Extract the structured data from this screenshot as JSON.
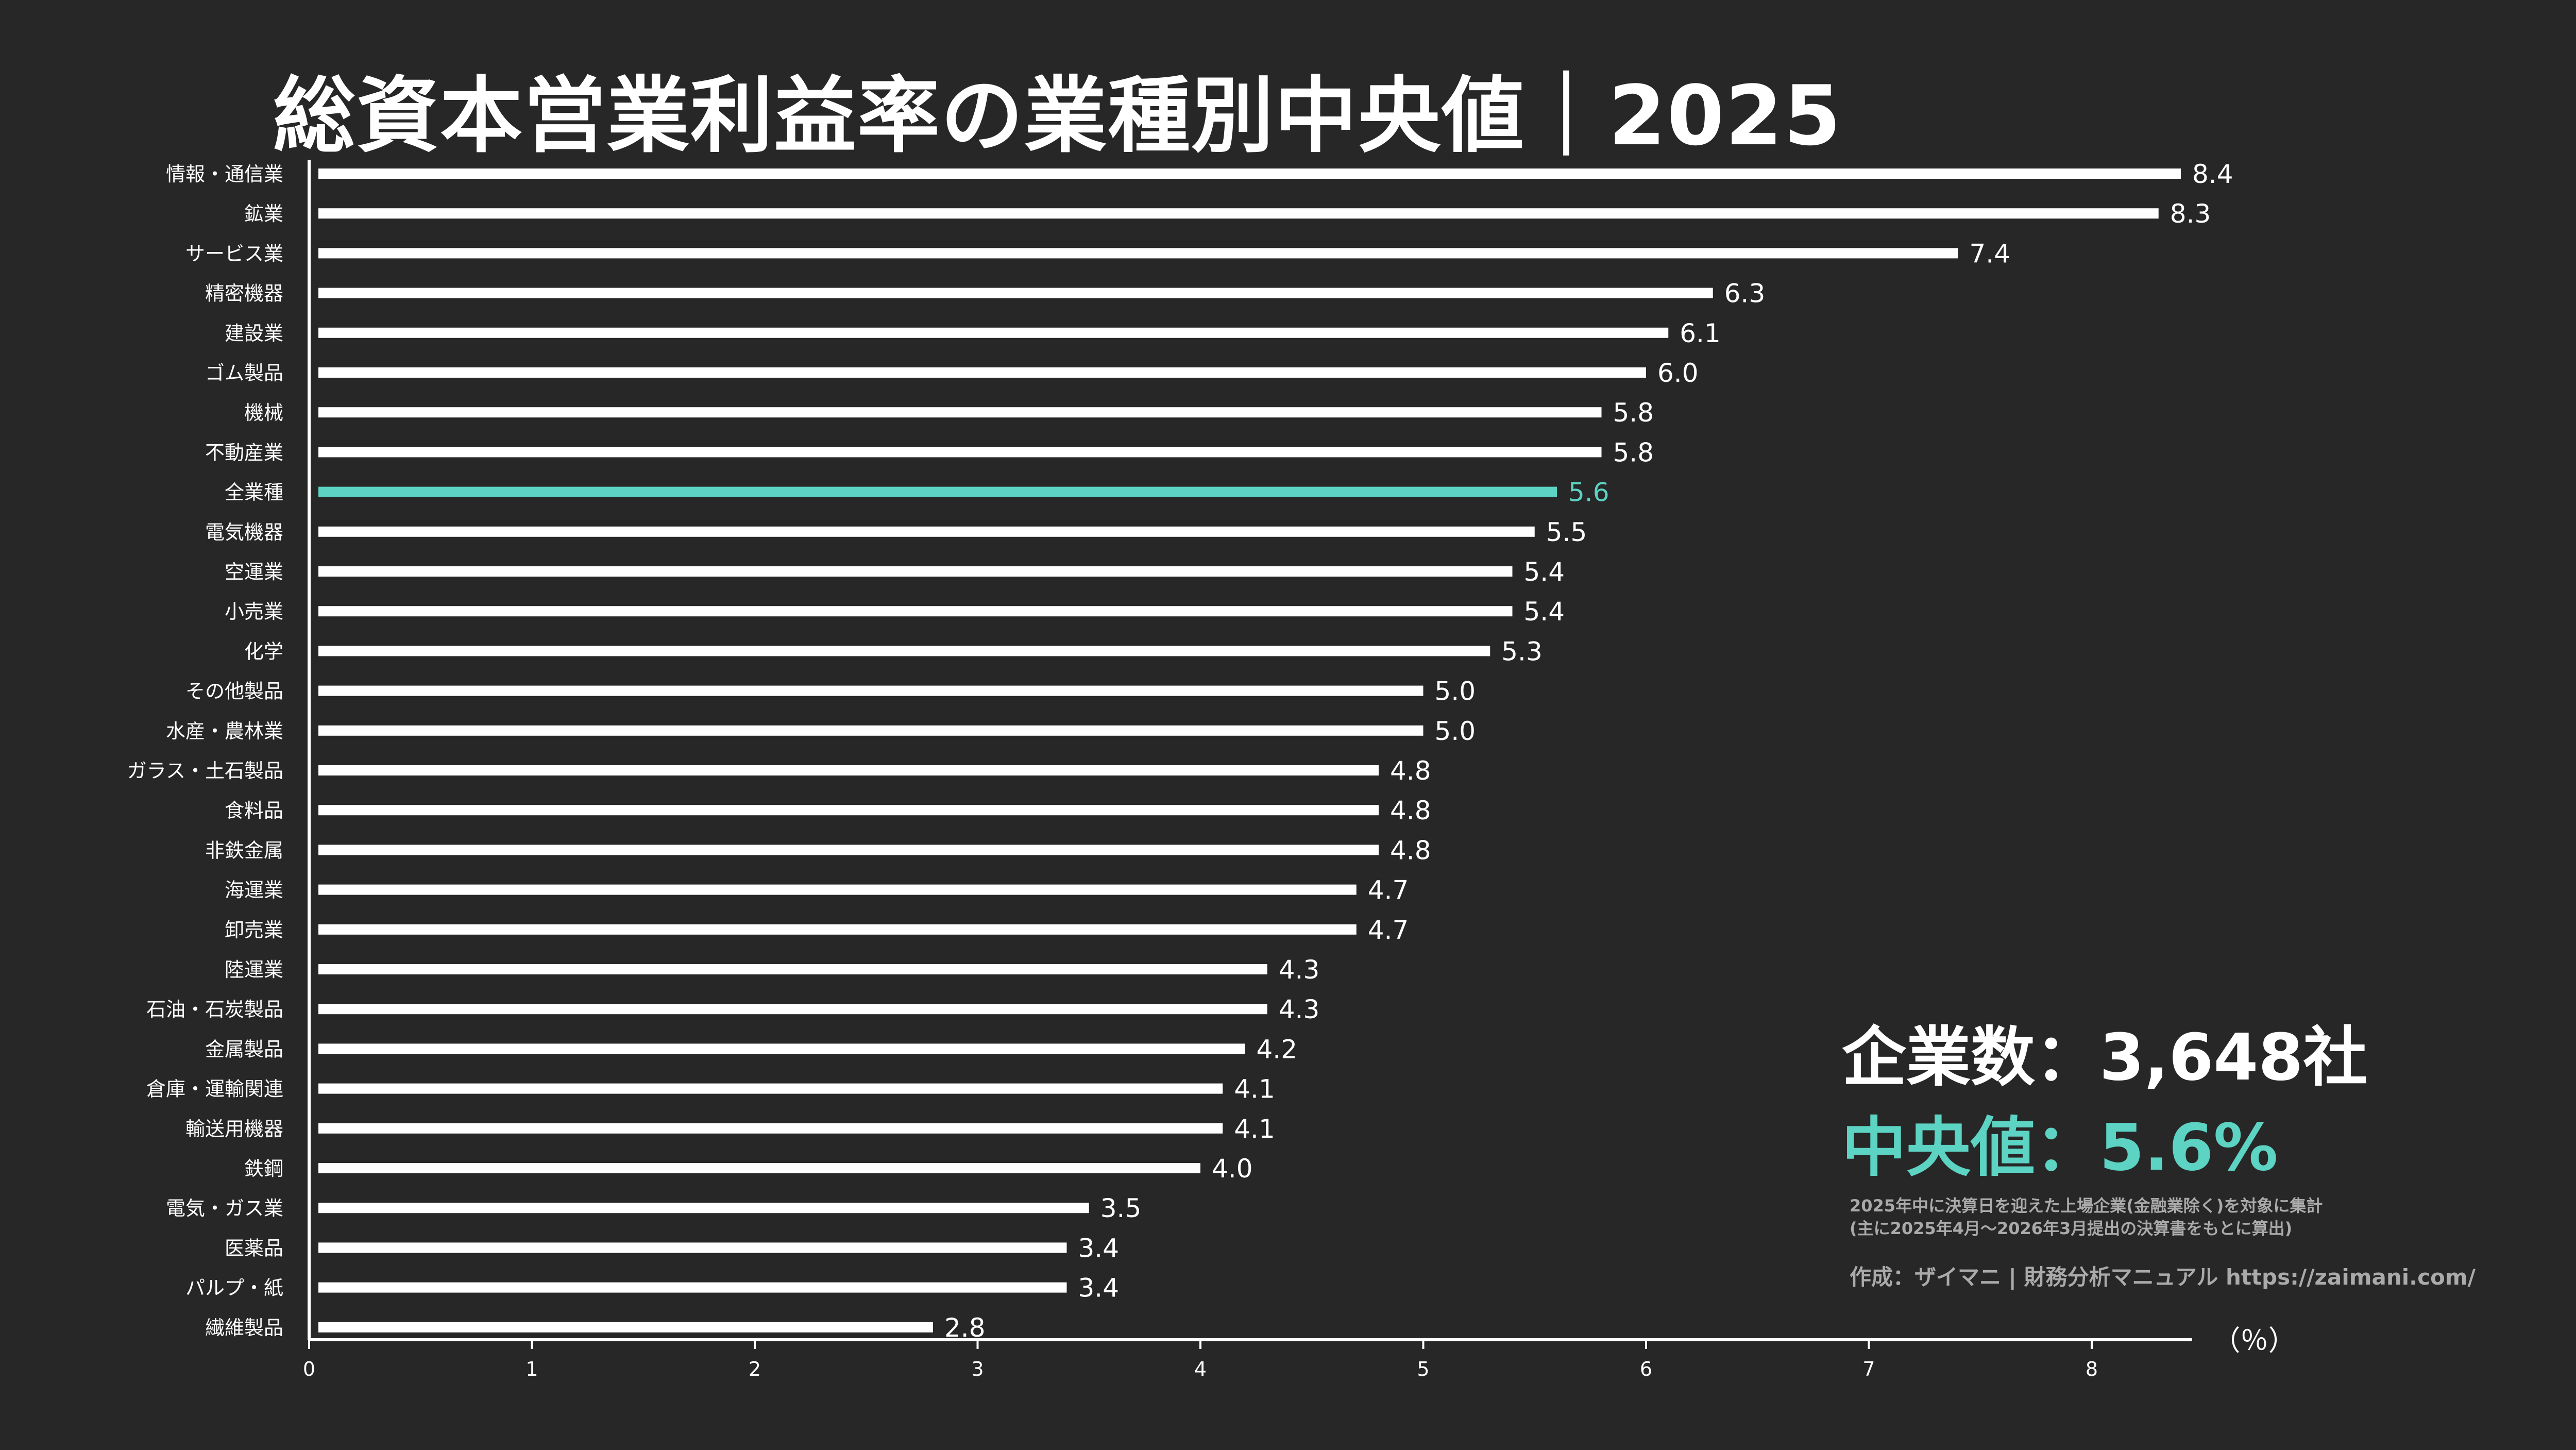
{
  "title": "総資本営業利益率の業種別中央値｜2025",
  "summary": {
    "count_label": "企業数：3,648社",
    "median_label": "中央値：5.6%"
  },
  "notes": {
    "line1": "2025年中に決算日を迎えた上場企業(金融業除く)を対象に集計",
    "line2": "(主に2025年4月～2026年3月提出の決算書をもとに算出)"
  },
  "credit": "作成：ザイマニ | 財務分析マニュアル https://zaimani.com/",
  "colors": {
    "background": "#272727",
    "bar": "#ffffff",
    "highlight": "#5cd3c3",
    "axis": "#ffffff"
  },
  "chart_data": {
    "type": "bar",
    "orientation": "horizontal",
    "xlabel": "（％）",
    "xlim": [
      0,
      8.45
    ],
    "xticks": [
      0,
      1,
      2,
      3,
      4,
      5,
      6,
      7,
      8
    ],
    "highlight": "全業種",
    "categories": [
      "情報・通信業",
      "鉱業",
      "サービス業",
      "精密機器",
      "建設業",
      "ゴム製品",
      "機械",
      "不動産業",
      "全業種",
      "電気機器",
      "空運業",
      "小売業",
      "化学",
      "その他製品",
      "水産・農林業",
      "ガラス・土石製品",
      "食料品",
      "非鉄金属",
      "海運業",
      "卸売業",
      "陸運業",
      "石油・石炭製品",
      "金属製品",
      "倉庫・運輸関連",
      "輸送用機器",
      "鉄鋼",
      "電気・ガス業",
      "医薬品",
      "パルプ・紙",
      "繊維製品"
    ],
    "values": [
      8.4,
      8.3,
      7.4,
      6.3,
      6.1,
      6.0,
      5.8,
      5.8,
      5.6,
      5.5,
      5.4,
      5.4,
      5.3,
      5.0,
      5.0,
      4.8,
      4.8,
      4.8,
      4.7,
      4.7,
      4.3,
      4.3,
      4.2,
      4.1,
      4.1,
      4.0,
      3.5,
      3.4,
      3.4,
      2.8
    ],
    "value_labels": [
      "8.4",
      "8.3",
      "7.4",
      "6.3",
      "6.1",
      "6.0",
      "5.8",
      "5.8",
      "5.6",
      "5.5",
      "5.4",
      "5.4",
      "5.3",
      "5.0",
      "5.0",
      "4.8",
      "4.8",
      "4.8",
      "4.7",
      "4.7",
      "4.3",
      "4.3",
      "4.2",
      "4.1",
      "4.1",
      "4.0",
      "3.5",
      "3.4",
      "3.4",
      "2.8"
    ]
  }
}
